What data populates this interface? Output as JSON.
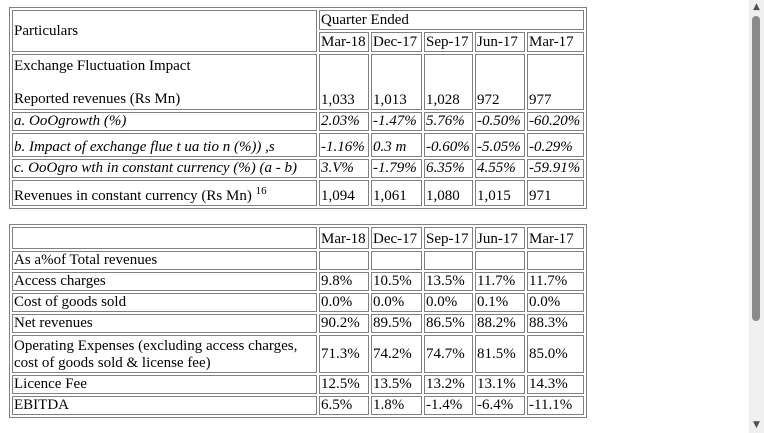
{
  "table1": {
    "particulars_label": "Particulars",
    "quarter_label": "Quarter Ended",
    "quarters": [
      "Mar-18",
      "Dec-17",
      "Sep-17",
      "Jun-17",
      "Mar-17"
    ],
    "section_label": "Exchange Fluctuation Impact",
    "rows": [
      {
        "label": "Reported revenues (Rs Mn)",
        "values": [
          "1,033",
          "1,013",
          "1,028",
          "972",
          "977"
        ]
      },
      {
        "label": "a. OoOgrowth (%)",
        "values": [
          "2.03%",
          "-1.47%",
          "5.76%",
          "-0.50%",
          "-60.20%"
        ]
      },
      {
        "label": "b. Impact of exchange flue t ua tio n (%)) ,s",
        "values": [
          "-1.16%",
          "0.3 m",
          "-0.60%",
          "-5.05%",
          "-0.29%"
        ]
      },
      {
        "label": "c. OoOgro wth in constant currency (%) (a - b)",
        "values": [
          "3.V%",
          "-1.79%",
          "6.35%",
          "4.55%",
          "-59.91%"
        ]
      },
      {
        "label": "Revenues in constant currency (Rs Mn)",
        "sup": "16",
        "values": [
          "1,094",
          "1,061",
          "1,080",
          "1,015",
          "971"
        ]
      }
    ]
  },
  "table2": {
    "quarters": [
      "Mar-18",
      "Dec-17",
      "Sep-17",
      "Jun-17",
      "Mar-17"
    ],
    "section_label": "As a%of Total revenues",
    "rows": [
      {
        "label": "Access charges",
        "values": [
          "9.8%",
          "10.5%",
          "13.5%",
          "11.7%",
          "11.7%"
        ]
      },
      {
        "label": "Cost of goods sold",
        "values": [
          "0.0%",
          "0.0%",
          "0.0%",
          "0.1%",
          "0.0%"
        ]
      },
      {
        "label": "Net revenues",
        "values": [
          "90.2%",
          "89.5%",
          "86.5%",
          "88.2%",
          "88.3%"
        ]
      },
      {
        "label": "Operating Expenses (excluding access charges, cost of goods sold & license fee)",
        "values": [
          "71.3%",
          "74.2%",
          "74.7%",
          "81.5%",
          "85.0%"
        ]
      },
      {
        "label": "Licence Fee",
        "values": [
          "12.5%",
          "13.5%",
          "13.2%",
          "13.1%",
          "14.3%"
        ]
      },
      {
        "label": "EBITDA",
        "values": [
          "6.5%",
          "1.8%",
          "-1.4%",
          "-6.4%",
          "-11.1%"
        ]
      }
    ]
  },
  "scrollbar": {
    "up_icon": "▲",
    "down_icon": "▼"
  }
}
